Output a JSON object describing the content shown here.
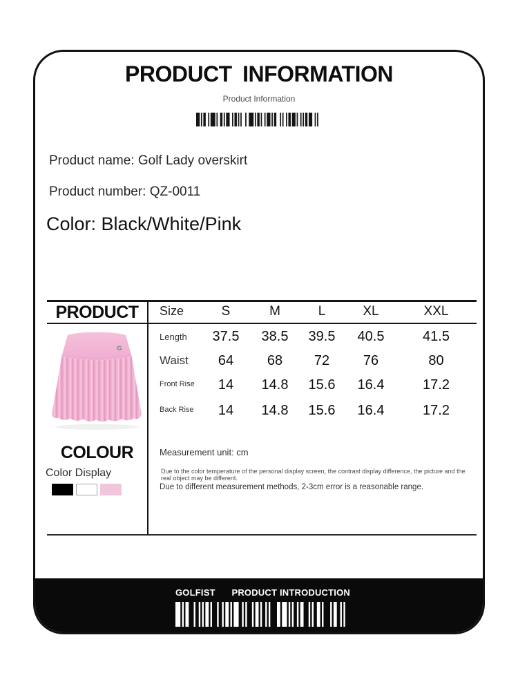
{
  "header": {
    "title": "PRODUCT INFORMATION",
    "subtitle": "Product Information"
  },
  "product": {
    "name_line": "Product name: Golf Lady overskirt",
    "number_line": "Product number: QZ-0011",
    "color_line": "Color: Black/White/Pink"
  },
  "size_chart": {
    "section_title": "PRODUCT",
    "columns": [
      "Size",
      "S",
      "M",
      "L",
      "XL",
      "XXL"
    ],
    "rows": [
      {
        "label": "Length",
        "values": [
          "37.5",
          "38.5",
          "39.5",
          "40.5",
          "41.5"
        ]
      },
      {
        "label": "Waist",
        "values": [
          "64",
          "68",
          "72",
          "76",
          "80"
        ]
      },
      {
        "label": "Front Rise",
        "values": [
          "14",
          "14.8",
          "15.6",
          "16.4",
          "17.2"
        ]
      },
      {
        "label": "Back Rise",
        "values": [
          "14",
          "14.8",
          "15.6",
          "16.4",
          "17.2"
        ]
      }
    ]
  },
  "colour_section": {
    "title": "COLOUR",
    "subtitle": "Color Display",
    "swatches": [
      {
        "name": "black",
        "hex": "#000000"
      },
      {
        "name": "white",
        "hex": "#ffffff"
      },
      {
        "name": "pink",
        "hex": "#f2c6da"
      }
    ]
  },
  "notes": {
    "unit": "Measurement unit: cm",
    "note1": "Due to the color temperature of the personal display screen, the contrast display difference, the picture and the real object may be different.",
    "note2": "Due to different measurement methods, 2-3cm error is a reasonable range."
  },
  "product_image": {
    "description": "pink pleated golf skirt",
    "logo_letter": "G",
    "pink_main": "#f2b3d1",
    "pink_dark": "#e59cc2",
    "pink_light": "#f8cade"
  },
  "footer": {
    "brand": "GOLFIST",
    "label": "PRODUCT INTRODUCTION"
  }
}
